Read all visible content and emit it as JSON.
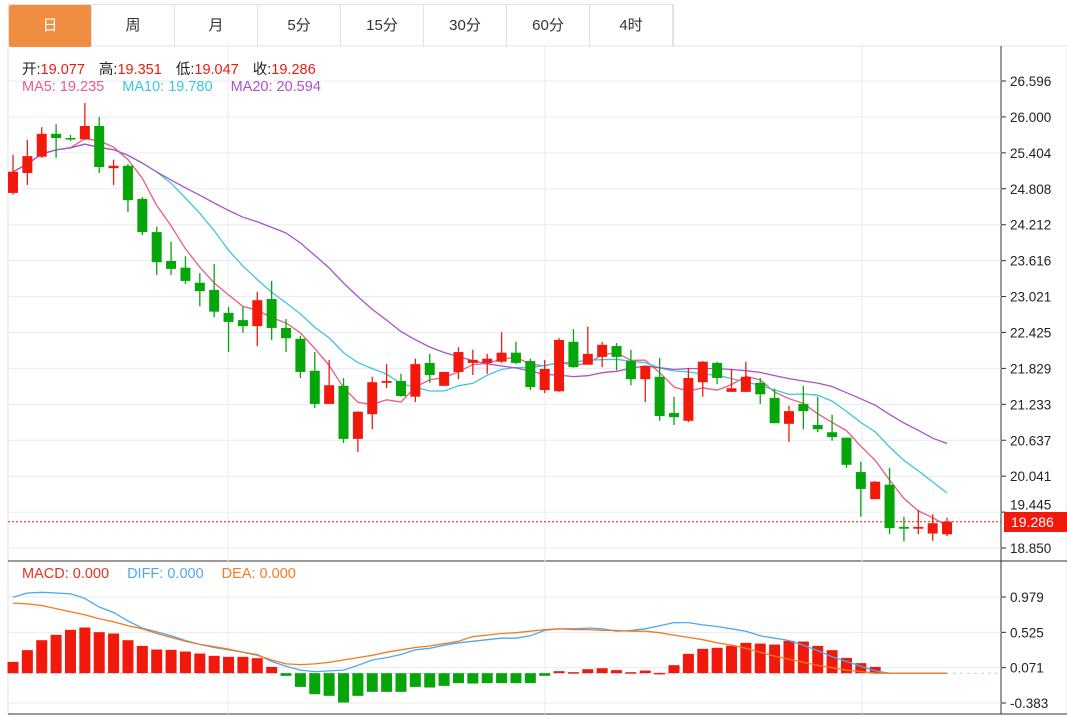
{
  "tabs": [
    {
      "label": "日",
      "active": true
    },
    {
      "label": "周"
    },
    {
      "label": "月"
    },
    {
      "label": "5分"
    },
    {
      "label": "15分"
    },
    {
      "label": "30分"
    },
    {
      "label": "60分"
    },
    {
      "label": "4时"
    }
  ],
  "ohlc_legend": {
    "open_label": "开:",
    "open": "19.077",
    "high_label": "高:",
    "high": "19.351",
    "low_label": "低:",
    "low": "19.047",
    "close_label": "收:",
    "close": "19.286"
  },
  "ma_legend": {
    "ma5": "MA5: 19.235",
    "ma10": "MA10: 19.780",
    "ma20": "MA20: 20.594"
  },
  "macd_legend": {
    "macd": "MACD: 0.000",
    "diff": "DIFF: 0.000",
    "dea": "DEA: 0.000"
  },
  "last_price": "19.286",
  "colors": {
    "up": "#f0190c",
    "down": "#06a50a",
    "ma5": "#ec5a86",
    "ma10": "#3ec6de",
    "ma20": "#ad52c8",
    "diff": "#4ea8f2",
    "dea": "#f57b1f",
    "tab_active": "#f18d40"
  },
  "chart_data": {
    "type": "candlestick",
    "price_axis": {
      "ticks": [
        "26.596",
        "26.000",
        "25.404",
        "24.808",
        "24.212",
        "23.616",
        "23.021",
        "22.425",
        "21.829",
        "21.233",
        "20.637",
        "20.041",
        "19.445",
        "18.850"
      ],
      "range": [
        18.85,
        26.596
      ]
    },
    "macd_axis": {
      "ticks": [
        "0.979",
        "0.525",
        "0.071",
        "-0.383"
      ],
      "range": [
        -0.383,
        0.979
      ]
    },
    "candles_ohlc": [
      [
        24.74,
        25.37,
        24.71,
        25.09
      ],
      [
        25.07,
        25.62,
        24.87,
        25.35
      ],
      [
        25.34,
        25.83,
        25.32,
        25.72
      ],
      [
        25.72,
        25.88,
        25.32,
        25.65
      ],
      [
        25.65,
        25.7,
        25.6,
        25.63
      ],
      [
        25.63,
        26.23,
        25.62,
        25.85
      ],
      [
        25.85,
        26.0,
        25.07,
        25.17
      ],
      [
        25.15,
        25.29,
        24.87,
        25.19
      ],
      [
        25.19,
        25.22,
        24.42,
        24.62
      ],
      [
        24.64,
        24.67,
        24.04,
        24.09
      ],
      [
        24.09,
        24.18,
        23.38,
        23.59
      ],
      [
        23.61,
        23.93,
        23.38,
        23.48
      ],
      [
        23.5,
        23.69,
        23.23,
        23.28
      ],
      [
        23.25,
        23.41,
        22.86,
        23.11
      ],
      [
        23.13,
        23.56,
        22.68,
        22.77
      ],
      [
        22.75,
        22.85,
        22.1,
        22.6
      ],
      [
        22.63,
        22.85,
        22.42,
        22.53
      ],
      [
        22.53,
        23.1,
        22.2,
        22.96
      ],
      [
        22.98,
        23.28,
        22.3,
        22.5
      ],
      [
        22.5,
        22.65,
        22.1,
        22.33
      ],
      [
        22.32,
        22.37,
        21.67,
        21.77
      ],
      [
        21.79,
        22.1,
        21.17,
        21.24
      ],
      [
        21.24,
        21.97,
        21.24,
        21.55
      ],
      [
        21.54,
        21.67,
        20.59,
        20.66
      ],
      [
        20.66,
        21.12,
        20.44,
        21.11
      ],
      [
        21.07,
        21.69,
        20.82,
        21.6
      ],
      [
        21.59,
        21.9,
        21.5,
        21.62
      ],
      [
        21.62,
        21.74,
        21.36,
        21.37
      ],
      [
        21.36,
        21.99,
        21.27,
        21.9
      ],
      [
        21.92,
        22.07,
        21.59,
        21.72
      ],
      [
        21.54,
        21.77,
        21.54,
        21.77
      ],
      [
        21.77,
        22.18,
        21.65,
        22.1
      ],
      [
        21.92,
        22.14,
        21.72,
        21.97
      ],
      [
        21.92,
        22.07,
        21.74,
        21.99
      ],
      [
        21.94,
        22.43,
        21.92,
        22.09
      ],
      [
        22.09,
        22.27,
        21.9,
        21.92
      ],
      [
        21.95,
        21.99,
        21.47,
        21.52
      ],
      [
        21.47,
        21.97,
        21.42,
        21.82
      ],
      [
        21.45,
        22.33,
        21.44,
        22.3
      ],
      [
        22.27,
        22.48,
        21.84,
        21.85
      ],
      [
        21.89,
        22.52,
        21.89,
        22.07
      ],
      [
        22.02,
        22.27,
        21.85,
        22.22
      ],
      [
        22.2,
        22.25,
        21.8,
        22.02
      ],
      [
        21.95,
        22.14,
        21.55,
        21.65
      ],
      [
        21.65,
        21.87,
        21.27,
        21.87
      ],
      [
        21.69,
        22.0,
        20.96,
        21.04
      ],
      [
        21.09,
        21.36,
        20.89,
        21.02
      ],
      [
        20.96,
        21.84,
        20.94,
        21.67
      ],
      [
        21.6,
        21.95,
        21.36,
        21.94
      ],
      [
        21.92,
        21.94,
        21.57,
        21.67
      ],
      [
        21.44,
        21.82,
        21.44,
        21.5
      ],
      [
        21.44,
        21.94,
        21.44,
        21.69
      ],
      [
        21.59,
        21.67,
        21.24,
        21.4
      ],
      [
        21.34,
        21.49,
        20.92,
        20.92
      ],
      [
        20.91,
        21.21,
        20.61,
        21.12
      ],
      [
        21.24,
        21.54,
        20.82,
        21.12
      ],
      [
        20.89,
        21.36,
        20.77,
        20.82
      ],
      [
        20.77,
        21.06,
        20.63,
        20.69
      ],
      [
        20.68,
        20.68,
        20.18,
        20.23
      ],
      [
        20.11,
        20.28,
        19.37,
        19.83
      ],
      [
        19.66,
        19.96,
        19.66,
        19.95
      ],
      [
        19.9,
        20.18,
        19.08,
        19.18
      ],
      [
        19.2,
        19.37,
        18.96,
        19.17
      ],
      [
        19.17,
        19.48,
        19.08,
        19.2
      ],
      [
        19.09,
        19.41,
        18.97,
        19.26
      ],
      [
        19.077,
        19.351,
        19.047,
        19.286
      ]
    ],
    "macd_hist": [
      0.146,
      0.296,
      0.424,
      0.493,
      0.557,
      0.587,
      0.527,
      0.51,
      0.424,
      0.351,
      0.304,
      0.3,
      0.278,
      0.253,
      0.223,
      0.21,
      0.21,
      0.193,
      0.081,
      -0.034,
      -0.176,
      -0.27,
      -0.291,
      -0.377,
      -0.291,
      -0.24,
      -0.24,
      -0.24,
      -0.176,
      -0.184,
      -0.163,
      -0.128,
      -0.133,
      -0.128,
      -0.128,
      -0.128,
      -0.128,
      -0.034,
      0.026,
      0.013,
      0.051,
      0.064,
      0.039,
      0.013,
      0.034,
      0.004,
      0.103,
      0.248,
      0.313,
      0.326,
      0.351,
      0.39,
      0.381,
      0.368,
      0.416,
      0.407,
      0.351,
      0.296,
      0.197,
      0.129,
      0.081,
      0,
      0,
      0,
      0,
      0
    ],
    "diff": [
      0.977,
      1.03,
      1.04,
      1.03,
      1.02,
      0.96,
      0.85,
      0.78,
      0.67,
      0.58,
      0.53,
      0.48,
      0.42,
      0.37,
      0.33,
      0.3,
      0.27,
      0.24,
      0.15,
      0.09,
      0.04,
      0.02,
      0.03,
      0.04,
      0.1,
      0.17,
      0.2,
      0.24,
      0.3,
      0.32,
      0.36,
      0.39,
      0.41,
      0.43,
      0.45,
      0.45,
      0.48,
      0.55,
      0.57,
      0.57,
      0.58,
      0.57,
      0.54,
      0.55,
      0.57,
      0.61,
      0.65,
      0.65,
      0.62,
      0.6,
      0.57,
      0.54,
      0.48,
      0.45,
      0.42,
      0.36,
      0.29,
      0.21,
      0.15,
      0.09,
      0.03,
      0,
      0,
      0,
      0,
      0
    ],
    "dea": [
      0.9,
      0.89,
      0.87,
      0.83,
      0.79,
      0.75,
      0.7,
      0.66,
      0.61,
      0.57,
      0.51,
      0.46,
      0.41,
      0.37,
      0.34,
      0.31,
      0.27,
      0.23,
      0.17,
      0.12,
      0.11,
      0.12,
      0.14,
      0.17,
      0.2,
      0.23,
      0.27,
      0.3,
      0.33,
      0.35,
      0.38,
      0.41,
      0.47,
      0.49,
      0.51,
      0.52,
      0.54,
      0.56,
      0.57,
      0.56,
      0.56,
      0.55,
      0.55,
      0.54,
      0.54,
      0.52,
      0.49,
      0.46,
      0.43,
      0.39,
      0.36,
      0.32,
      0.27,
      0.22,
      0.18,
      0.14,
      0.1,
      0.07,
      0.04,
      0.02,
      0,
      0,
      0,
      0,
      0,
      0
    ],
    "ma_periods": [
      5,
      10,
      20
    ]
  }
}
